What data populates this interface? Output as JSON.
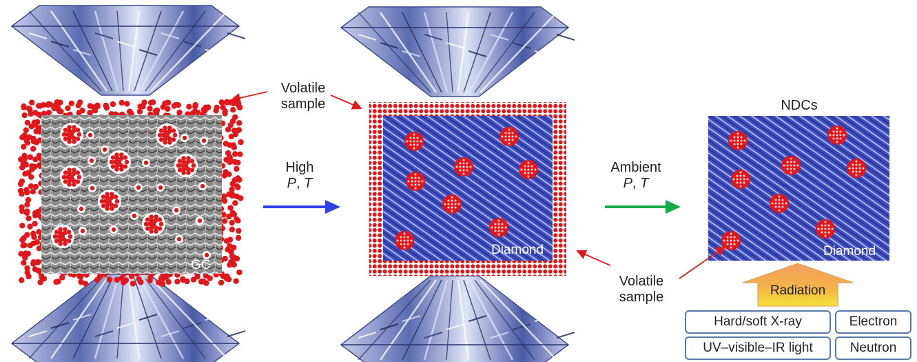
{
  "labels": {
    "volatile_sample_top": [
      "Volatile",
      "sample"
    ],
    "volatile_sample_bottom": [
      "Volatile",
      "sample"
    ],
    "high": "High",
    "ambient": "Ambient",
    "p": "P",
    "t": "T",
    "comma": ", ",
    "ndcs": "NDCs",
    "gc": "GC",
    "diamond_middle": "Diamond",
    "diamond_right": "Diamond",
    "radiation": "Radiation"
  },
  "radiation_sources": [
    "Hard/soft X-ray",
    "Electron",
    "UV–visible–IR light",
    "Neutron"
  ],
  "colors": {
    "sample_red": "#e0181c",
    "gc_gray": "#8a8a8a",
    "diamond_blue": "#3c4ab4",
    "arrow_blue": "#2f3fe8",
    "arrow_green": "#13a84a",
    "radiation_orange": "#f3a35a",
    "anvil_blue": "#7d8fc8",
    "box_border": "#5a78a8"
  },
  "icons": [
    "diamond-anvil-icon",
    "arrow-icon",
    "radiation-arrow-icon"
  ]
}
